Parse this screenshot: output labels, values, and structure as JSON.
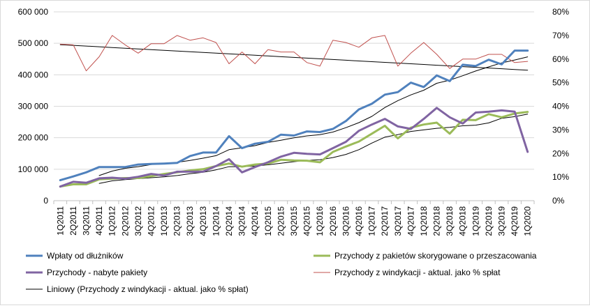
{
  "chart_data": {
    "type": "line",
    "categories": [
      "1Q2011",
      "2Q2011",
      "3Q2011",
      "4Q2011",
      "1Q2012",
      "2Q2012",
      "3Q2012",
      "4Q2012",
      "1Q2013",
      "2Q2013",
      "3Q2013",
      "4Q2013",
      "1Q2014",
      "2Q2014",
      "3Q2014",
      "4Q2014",
      "1Q2015",
      "2Q2015",
      "3Q2015",
      "4Q2015",
      "1Q2016",
      "2Q2016",
      "3Q2016",
      "4Q2016",
      "1Q2017",
      "2Q2017",
      "3Q2017",
      "4Q2017",
      "1Q2018",
      "2Q2018",
      "3Q2018",
      "4Q2018",
      "1Q2019",
      "2Q2019",
      "3Q2019",
      "4Q2019",
      "1Q2020"
    ],
    "y_left": {
      "ylim": [
        0,
        600000
      ],
      "ticks": [
        0,
        100000,
        200000,
        300000,
        400000,
        500000,
        600000
      ],
      "tick_labels": [
        "0",
        "100 000",
        "200 000",
        "300 000",
        "400 000",
        "500 000",
        "600 000"
      ]
    },
    "y_right": {
      "ylim": [
        0,
        0.8
      ],
      "ticks": [
        0,
        0.1,
        0.2,
        0.3,
        0.4,
        0.5,
        0.6,
        0.7,
        0.8
      ],
      "tick_labels": [
        "0%",
        "10%",
        "20%",
        "30%",
        "40%",
        "50%",
        "60%",
        "70%",
        "80%"
      ]
    },
    "grid": "horizontal",
    "legend_placement": "bottom",
    "series": [
      {
        "name": "Wpłaty od dłużników",
        "axis": "left",
        "color": "#4f81bd",
        "values": [
          65000,
          77000,
          90000,
          107000,
          107000,
          107000,
          115000,
          117000,
          118000,
          120000,
          142000,
          153000,
          153000,
          205000,
          167000,
          181000,
          187000,
          210000,
          207000,
          220000,
          218000,
          228000,
          253000,
          290000,
          308000,
          337000,
          345000,
          375000,
          361000,
          398000,
          380000,
          432000,
          428000,
          448000,
          433000,
          477000,
          477000
        ]
      },
      {
        "name": "Przychody z pakietów skorygowane o przeszacowania",
        "axis": "left",
        "color": "#9bbb59",
        "values": [
          45000,
          52000,
          52000,
          68000,
          70000,
          72000,
          72000,
          78000,
          85000,
          90000,
          96000,
          100000,
          110000,
          118000,
          108000,
          115000,
          118000,
          130000,
          128000,
          127000,
          122000,
          155000,
          172000,
          188000,
          213000,
          238000,
          198000,
          232000,
          242000,
          248000,
          213000,
          257000,
          256000,
          275000,
          265000,
          277000,
          282000
        ]
      },
      {
        "name": "Przychody - nabyte pakiety",
        "axis": "left",
        "color": "#8064a2",
        "values": [
          45000,
          60000,
          57000,
          71000,
          73000,
          70000,
          76000,
          85000,
          80000,
          92000,
          92000,
          92000,
          110000,
          132000,
          90000,
          107000,
          122000,
          140000,
          152000,
          149000,
          147000,
          167000,
          187000,
          222000,
          242000,
          260000,
          236000,
          228000,
          260000,
          295000,
          265000,
          245000,
          280000,
          283000,
          287000,
          283000,
          155000
        ]
      },
      {
        "name": "Przychody z windykacji - aktual. jako % spłat",
        "axis": "right",
        "color": "#c0504d",
        "values": [
          0.663,
          0.66,
          0.55,
          0.61,
          0.7,
          0.66,
          0.625,
          0.665,
          0.665,
          0.7,
          0.68,
          0.69,
          0.67,
          0.58,
          0.63,
          0.58,
          0.64,
          0.63,
          0.63,
          0.585,
          0.57,
          0.68,
          0.67,
          0.65,
          0.69,
          0.7,
          0.57,
          0.625,
          0.67,
          0.62,
          0.56,
          0.6,
          0.6,
          0.62,
          0.62,
          0.585,
          0.59
        ]
      },
      {
        "name": "Liniowy (Przychody z windykacji - aktual. jako % spłat)",
        "axis": "right",
        "color": "#000000",
        "trendline": true,
        "values": [
          0.661,
          0.658,
          0.655,
          0.652,
          0.649,
          0.646,
          0.643,
          0.64,
          0.637,
          0.634,
          0.631,
          0.628,
          0.625,
          0.622,
          0.619,
          0.616,
          0.613,
          0.61,
          0.607,
          0.604,
          0.601,
          0.598,
          0.595,
          0.592,
          0.589,
          0.586,
          0.583,
          0.58,
          0.577,
          0.574,
          0.571,
          0.568,
          0.565,
          0.562,
          0.559,
          0.556,
          0.553
        ]
      },
      {
        "name": "",
        "axis": "left",
        "color": "#000000",
        "trendline": true,
        "start_index": 3,
        "values": [
          null,
          null,
          null,
          80000,
          94000,
          103000,
          108000,
          115000,
          118000,
          122000,
          128000,
          135000,
          143000,
          162000,
          168000,
          175000,
          185000,
          192000,
          200000,
          206000,
          210000,
          218000,
          232000,
          248000,
          268000,
          296000,
          318000,
          336000,
          351000,
          373000,
          383000,
          397000,
          412000,
          425000,
          438000,
          447000,
          457000
        ]
      },
      {
        "name": "",
        "axis": "left",
        "color": "#000000",
        "trendline": true,
        "start_index": 3,
        "values": [
          null,
          null,
          null,
          55000,
          63000,
          67000,
          70000,
          73000,
          76000,
          80000,
          86000,
          90000,
          98000,
          108000,
          108000,
          110000,
          114000,
          119000,
          124000,
          128000,
          130000,
          137000,
          147000,
          162000,
          183000,
          202000,
          210000,
          220000,
          225000,
          230000,
          233000,
          238000,
          240000,
          247000,
          262000,
          267000,
          275000
        ]
      }
    ],
    "legend": [
      {
        "label": "Wpłaty od dłużników",
        "color": "#4f81bd",
        "weight": "thick"
      },
      {
        "label": "Przychody z pakietów skorygowane o przeszacowania",
        "color": "#9bbb59",
        "weight": "thick"
      },
      {
        "label": "Przychody - nabyte pakiety",
        "color": "#8064a2",
        "weight": "thick"
      },
      {
        "label": "Przychody z windykacji - aktual. jako % spłat",
        "color": "#c0504d",
        "weight": "thin"
      },
      {
        "label": "Liniowy (Przychody z windykacji - aktual. jako % spłat)",
        "color": "#000000",
        "weight": "thin"
      }
    ]
  }
}
